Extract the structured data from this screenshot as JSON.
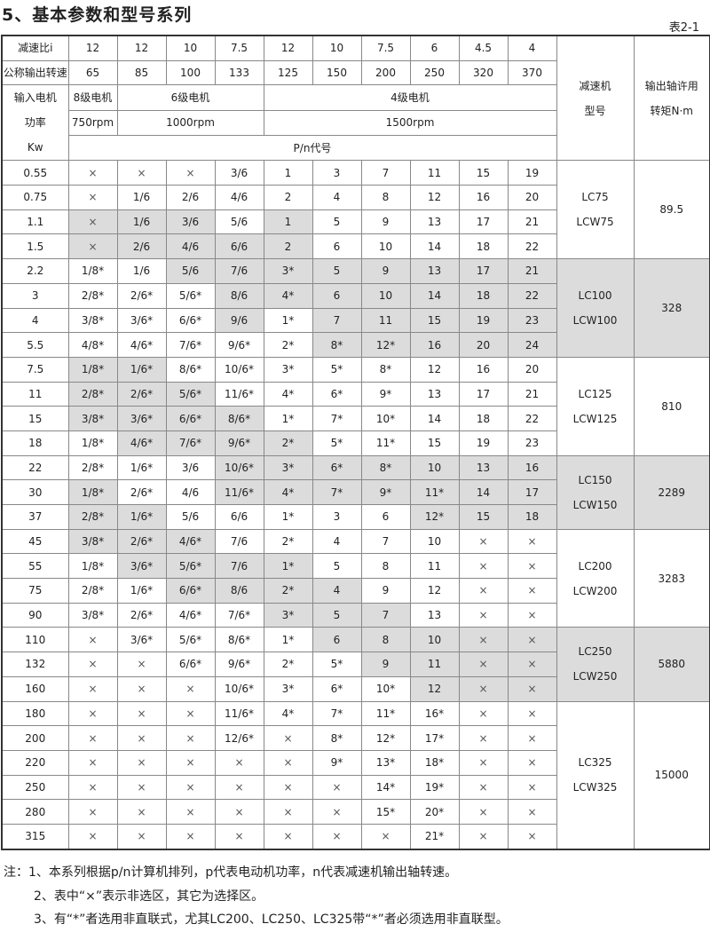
{
  "title": "5、基本参数和型号系列",
  "table_no": "表2-1",
  "header": {
    "ratio_label": "减速比i",
    "ratios": [
      "12",
      "12",
      "10",
      "7.5",
      "12",
      "10",
      "7.5",
      "6",
      "4.5",
      "4"
    ],
    "speed_label": "公称输出转速",
    "speeds": [
      "65",
      "85",
      "100",
      "133",
      "125",
      "150",
      "200",
      "250",
      "320",
      "370"
    ],
    "power_label": [
      "输入电机",
      "功率",
      "Kw"
    ],
    "motor_groups": [
      {
        "label": "8级电机",
        "rpm": "750rpm",
        "span": 1
      },
      {
        "label": "6级电机",
        "rpm": "1000rpm",
        "span": 3
      },
      {
        "label": "4级电机",
        "rpm": "1500rpm",
        "span": 6
      }
    ],
    "code_label": "P/n代号",
    "model_label": [
      "减速机",
      "型号"
    ],
    "torque_label": [
      "输出轴许用",
      "转矩N·m"
    ]
  },
  "shade_color": "#dcdcdc",
  "groups": [
    {
      "model": [
        "LC75",
        "LCW75"
      ],
      "torque": "89.5",
      "shaded": false,
      "rows": [
        {
          "p": "0.55",
          "c": [
            "×",
            "×",
            "×",
            "3/6",
            "1",
            "3",
            "7",
            "11",
            "15",
            "19"
          ],
          "s": []
        },
        {
          "p": "0.75",
          "c": [
            "×",
            "1/6",
            "2/6",
            "4/6",
            "2",
            "4",
            "8",
            "12",
            "16",
            "20"
          ],
          "s": []
        },
        {
          "p": "1.1",
          "c": [
            "×",
            "1/6",
            "3/6",
            "5/6",
            "1",
            "5",
            "9",
            "13",
            "17",
            "21"
          ],
          "s": [
            0,
            1,
            2,
            4
          ]
        },
        {
          "p": "1.5",
          "c": [
            "×",
            "2/6",
            "4/6",
            "6/6",
            "2",
            "6",
            "10",
            "14",
            "18",
            "22"
          ],
          "s": [
            0,
            1,
            2,
            3,
            4
          ]
        }
      ]
    },
    {
      "model": [
        "LC100",
        "LCW100"
      ],
      "torque": "328",
      "shaded": true,
      "rows": [
        {
          "p": "2.2",
          "c": [
            "1/8*",
            "1/6",
            "5/6",
            "7/6",
            "3*",
            "5",
            "9",
            "13",
            "17",
            "21"
          ],
          "s": [
            2,
            3,
            4,
            5,
            6,
            7,
            8,
            9
          ]
        },
        {
          "p": "3",
          "c": [
            "2/8*",
            "2/6*",
            "5/6*",
            "8/6",
            "4*",
            "6",
            "10",
            "14",
            "18",
            "22"
          ],
          "s": [
            3,
            4,
            5,
            6,
            7,
            8,
            9
          ]
        },
        {
          "p": "4",
          "c": [
            "3/8*",
            "3/6*",
            "6/6*",
            "9/6",
            "1*",
            "7",
            "11",
            "15",
            "19",
            "23"
          ],
          "s": [
            3,
            5,
            6,
            7,
            8,
            9
          ]
        },
        {
          "p": "5.5",
          "c": [
            "4/8*",
            "4/6*",
            "7/6*",
            "9/6*",
            "2*",
            "8*",
            "12*",
            "16",
            "20",
            "24"
          ],
          "s": [
            5,
            6,
            7,
            8,
            9
          ]
        }
      ]
    },
    {
      "model": [
        "LC125",
        "LCW125"
      ],
      "torque": "810",
      "shaded": false,
      "rows": [
        {
          "p": "7.5",
          "c": [
            "1/8*",
            "1/6*",
            "8/6*",
            "10/6*",
            "3*",
            "5*",
            "8*",
            "12",
            "16",
            "20"
          ],
          "s": [
            0,
            1
          ]
        },
        {
          "p": "11",
          "c": [
            "2/8*",
            "2/6*",
            "5/6*",
            "11/6*",
            "4*",
            "6*",
            "9*",
            "13",
            "17",
            "21"
          ],
          "s": [
            0,
            1,
            2
          ]
        },
        {
          "p": "15",
          "c": [
            "3/8*",
            "3/6*",
            "6/6*",
            "8/6*",
            "1*",
            "7*",
            "10*",
            "14",
            "18",
            "22"
          ],
          "s": [
            0,
            1,
            2,
            3
          ]
        },
        {
          "p": "18",
          "c": [
            "1/8*",
            "4/6*",
            "7/6*",
            "9/6*",
            "2*",
            "5*",
            "11*",
            "15",
            "19",
            "23"
          ],
          "s": [
            1,
            2,
            3,
            4
          ]
        }
      ]
    },
    {
      "model": [
        "LC150",
        "LCW150"
      ],
      "torque": "2289",
      "shaded": true,
      "rows": [
        {
          "p": "22",
          "c": [
            "2/8*",
            "1/6*",
            "3/6",
            "10/6*",
            "3*",
            "6*",
            "8*",
            "10",
            "13",
            "16"
          ],
          "s": [
            3,
            4,
            5,
            6,
            7,
            8,
            9
          ]
        },
        {
          "p": "30",
          "c": [
            "1/8*",
            "2/6*",
            "4/6",
            "11/6*",
            "4*",
            "7*",
            "9*",
            "11*",
            "14",
            "17"
          ],
          "s": [
            0,
            3,
            4,
            5,
            6,
            7,
            8,
            9
          ]
        },
        {
          "p": "37",
          "c": [
            "2/8*",
            "1/6*",
            "5/6",
            "6/6",
            "1*",
            "3",
            "6",
            "12*",
            "15",
            "18"
          ],
          "s": [
            0,
            1,
            7,
            8,
            9
          ]
        }
      ]
    },
    {
      "model": [
        "LC200",
        "LCW200"
      ],
      "torque": "3283",
      "shaded": false,
      "rows": [
        {
          "p": "45",
          "c": [
            "3/8*",
            "2/6*",
            "4/6*",
            "7/6",
            "2*",
            "4",
            "7",
            "10",
            "×",
            "×"
          ],
          "s": [
            0,
            1,
            2
          ]
        },
        {
          "p": "55",
          "c": [
            "1/8*",
            "3/6*",
            "5/6*",
            "7/6",
            "1*",
            "5",
            "8",
            "11",
            "×",
            "×"
          ],
          "s": [
            1,
            2,
            3,
            4
          ]
        },
        {
          "p": "75",
          "c": [
            "2/8*",
            "1/6*",
            "6/6*",
            "8/6",
            "2*",
            "4",
            "9",
            "12",
            "×",
            "×"
          ],
          "s": [
            2,
            3,
            4,
            5
          ]
        },
        {
          "p": "90",
          "c": [
            "3/8*",
            "2/6*",
            "4/6*",
            "7/6*",
            "3*",
            "5",
            "7",
            "13",
            "×",
            "×"
          ],
          "s": [
            4,
            5,
            6
          ]
        }
      ]
    },
    {
      "model": [
        "LC250",
        "LCW250"
      ],
      "torque": "5880",
      "shaded": true,
      "rows": [
        {
          "p": "110",
          "c": [
            "×",
            "3/6*",
            "5/6*",
            "8/6*",
            "1*",
            "6",
            "8",
            "10",
            "×",
            "×"
          ],
          "s": [
            5,
            6,
            7,
            8,
            9
          ]
        },
        {
          "p": "132",
          "c": [
            "×",
            "×",
            "6/6*",
            "9/6*",
            "2*",
            "5*",
            "9",
            "11",
            "×",
            "×"
          ],
          "s": [
            6,
            7,
            8,
            9
          ]
        },
        {
          "p": "160",
          "c": [
            "×",
            "×",
            "×",
            "10/6*",
            "3*",
            "6*",
            "10*",
            "12",
            "×",
            "×"
          ],
          "s": [
            7,
            8,
            9
          ]
        }
      ]
    },
    {
      "model": [
        "LC325",
        "LCW325"
      ],
      "torque": "15000",
      "shaded": false,
      "rows": [
        {
          "p": "180",
          "c": [
            "×",
            "×",
            "×",
            "11/6*",
            "4*",
            "7*",
            "11*",
            "16*",
            "×",
            "×"
          ],
          "s": []
        },
        {
          "p": "200",
          "c": [
            "×",
            "×",
            "×",
            "12/6*",
            "×",
            "8*",
            "12*",
            "17*",
            "×",
            "×"
          ],
          "s": []
        },
        {
          "p": "220",
          "c": [
            "×",
            "×",
            "×",
            "×",
            "×",
            "9*",
            "13*",
            "18*",
            "×",
            "×"
          ],
          "s": []
        },
        {
          "p": "250",
          "c": [
            "×",
            "×",
            "×",
            "×",
            "×",
            "×",
            "14*",
            "19*",
            "×",
            "×"
          ],
          "s": []
        },
        {
          "p": "280",
          "c": [
            "×",
            "×",
            "×",
            "×",
            "×",
            "×",
            "15*",
            "20*",
            "×",
            "×"
          ],
          "s": []
        },
        {
          "p": "315",
          "c": [
            "×",
            "×",
            "×",
            "×",
            "×",
            "×",
            "×",
            "21*",
            "×",
            "×"
          ],
          "s": []
        }
      ]
    }
  ],
  "notes": [
    "注：1、本系列根据p/n计算机排列，p代表电动机功率，n代表减速机输出轴转速。",
    "2、表中“×”表示非选区，其它为选择区。",
    "3、有“*”者选用非直联式，尤其LC200、LC250、LC325带“*”者必须选用非直联型。"
  ]
}
